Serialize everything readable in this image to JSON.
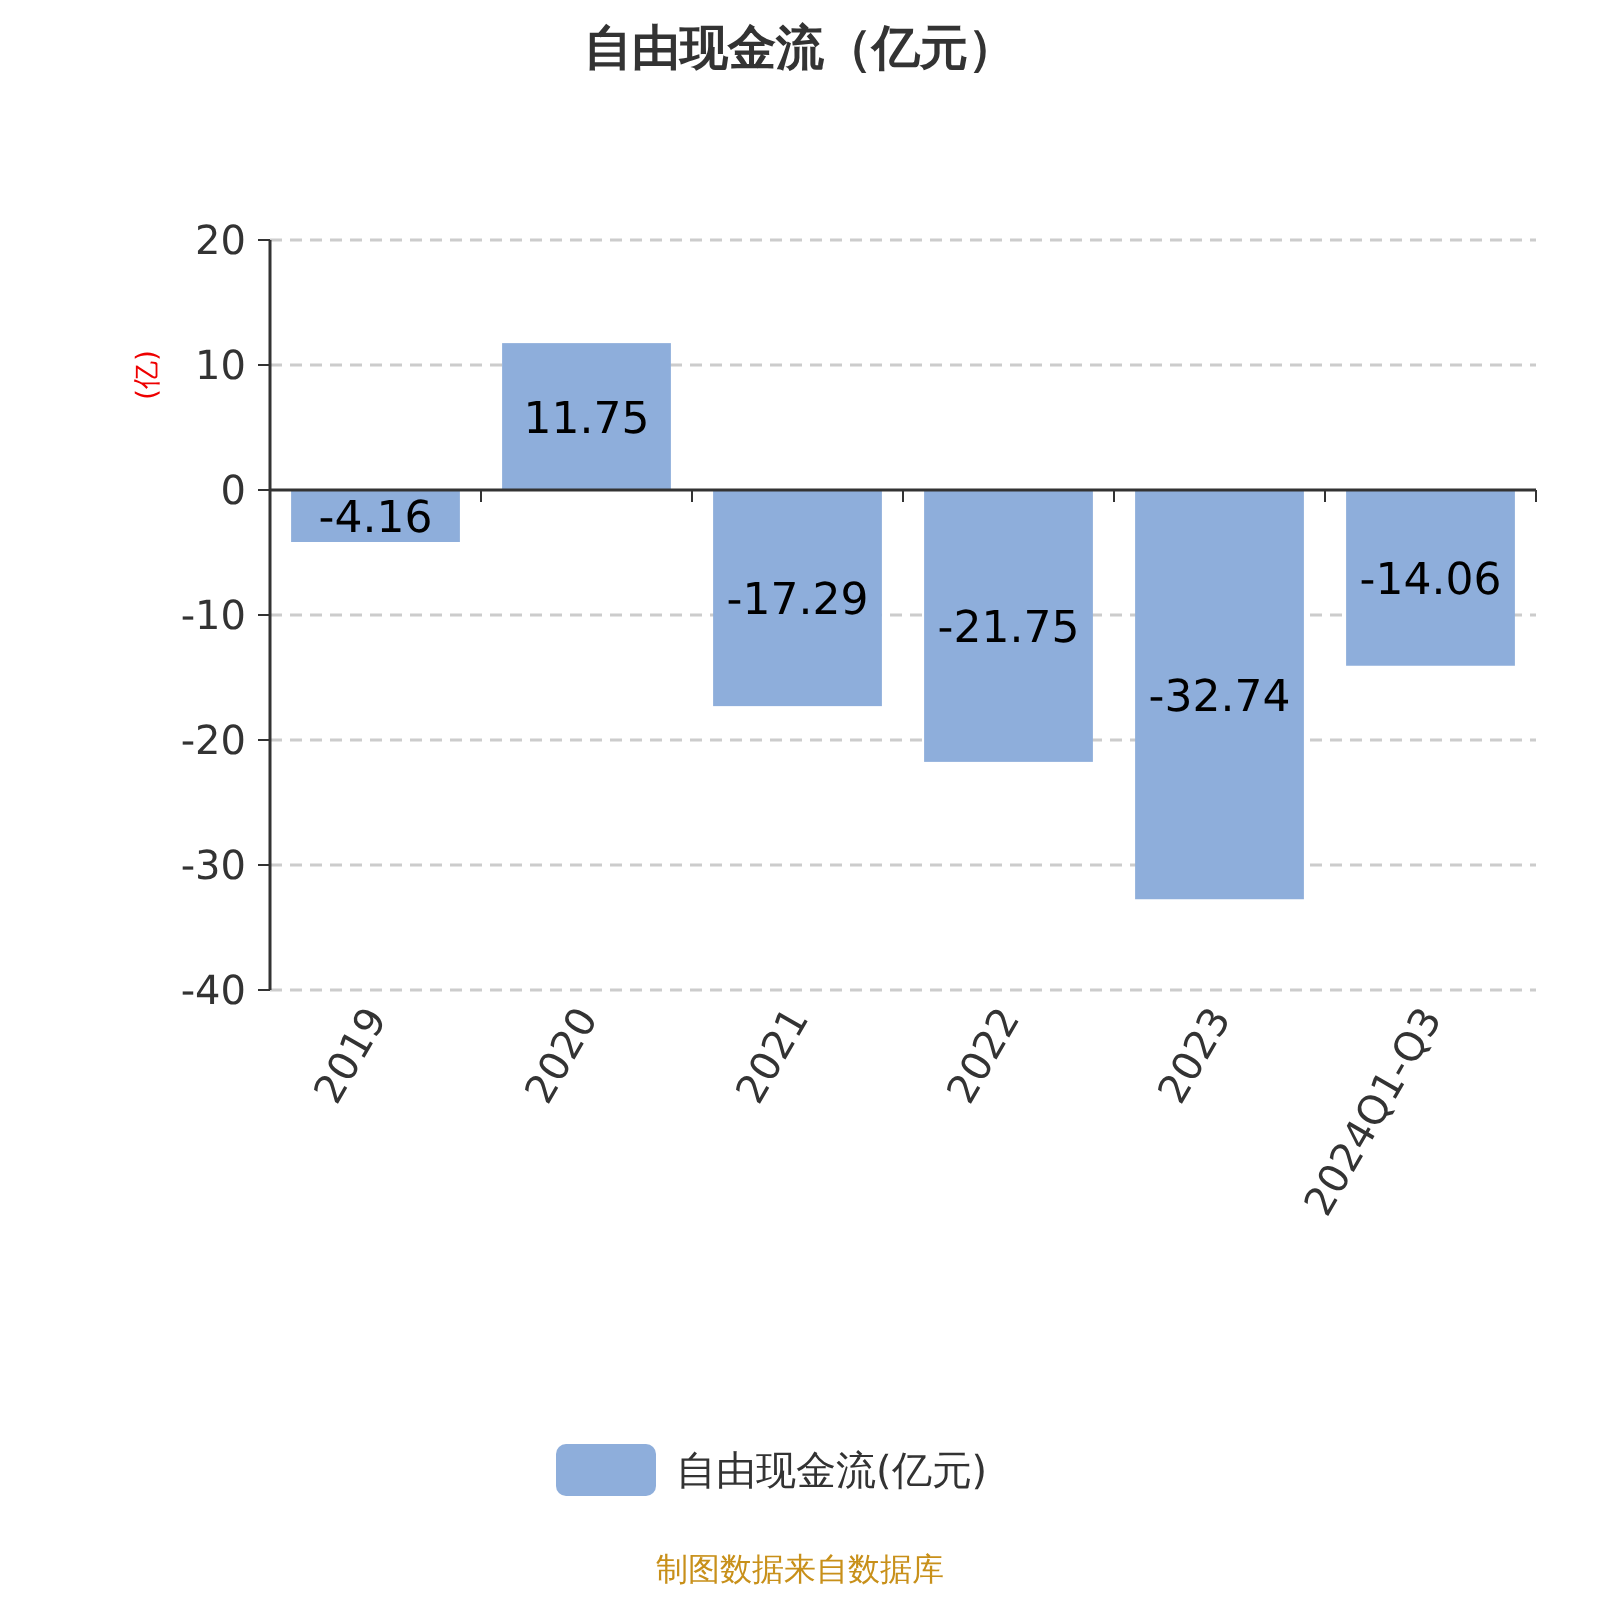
{
  "chart_data": {
    "type": "bar",
    "title": "自由现金流（亿元）",
    "ylabel": "(亿)",
    "categories": [
      "2019",
      "2020",
      "2021",
      "2022",
      "2023",
      "2024Q1-Q3"
    ],
    "series": [
      {
        "name": "自由现金流(亿元)",
        "color": "#8eaedb",
        "values": [
          -4.16,
          11.75,
          -17.29,
          -21.75,
          -32.74,
          -14.06
        ]
      }
    ],
    "ylim": [
      -40,
      20
    ],
    "yticks": [
      -40,
      -30,
      -20,
      -10,
      0,
      10,
      20
    ],
    "grid": "y",
    "data_labels": true,
    "legend": "bottom",
    "annotations": [
      "制图数据来自数据库"
    ]
  }
}
